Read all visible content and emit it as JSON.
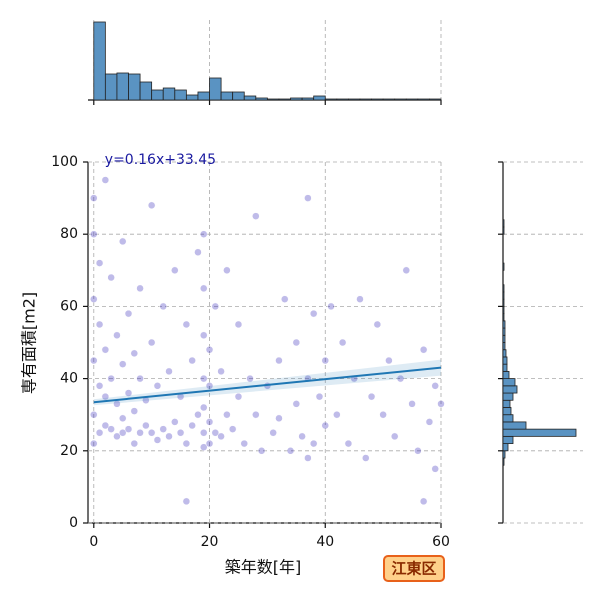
{
  "chart_data": [
    {
      "type": "scatter",
      "xlabel": "築年数[年]",
      "ylabel": "専有面積[m2]",
      "badge": "江東区",
      "equation": "y=0.16x+33.45",
      "slope": 0.16,
      "intercept": 33.45,
      "line_color": "#1f77b4",
      "color": "#2a1fb5",
      "grid": true,
      "xlim": [
        -1,
        60
      ],
      "ylim": [
        0,
        100
      ],
      "xticks": [
        0,
        20,
        40,
        60
      ],
      "yticks": [
        0,
        20,
        40,
        60,
        80,
        100
      ],
      "x": [
        0,
        0,
        0,
        0,
        0,
        0,
        1,
        1,
        1,
        1,
        2,
        2,
        2,
        2,
        3,
        3,
        3,
        4,
        4,
        4,
        5,
        5,
        5,
        5,
        6,
        6,
        6,
        7,
        7,
        7,
        8,
        8,
        8,
        9,
        9,
        10,
        10,
        10,
        11,
        11,
        12,
        12,
        13,
        13,
        14,
        14,
        15,
        15,
        16,
        16,
        16,
        17,
        17,
        18,
        18,
        19,
        19,
        19,
        19,
        19,
        19,
        19,
        20,
        20,
        20,
        20,
        21,
        21,
        22,
        22,
        23,
        23,
        24,
        25,
        25,
        26,
        27,
        28,
        28,
        29,
        30,
        31,
        32,
        32,
        33,
        34,
        35,
        35,
        36,
        37,
        37,
        37,
        38,
        38,
        39,
        40,
        40,
        41,
        42,
        43,
        44,
        45,
        46,
        47,
        48,
        49,
        50,
        51,
        52,
        53,
        54,
        55,
        56,
        57,
        58,
        59,
        60,
        59,
        57
      ],
      "values": [
        22,
        30,
        45,
        62,
        80,
        90,
        25,
        38,
        55,
        72,
        27,
        35,
        48,
        95,
        26,
        40,
        68,
        24,
        33,
        52,
        25,
        29,
        44,
        78,
        26,
        36,
        58,
        22,
        31,
        47,
        25,
        40,
        65,
        27,
        34,
        25,
        50,
        88,
        23,
        38,
        26,
        60,
        24,
        42,
        28,
        70,
        25,
        35,
        22,
        55,
        6,
        27,
        45,
        30,
        75,
        21,
        25,
        32,
        40,
        52,
        65,
        80,
        22,
        28,
        38,
        48,
        25,
        60,
        24,
        42,
        30,
        70,
        26,
        35,
        55,
        22,
        40,
        30,
        85,
        20,
        38,
        25,
        45,
        29,
        62,
        20,
        33,
        50,
        24,
        18,
        40,
        90,
        22,
        58,
        35,
        27,
        45,
        60,
        30,
        50,
        22,
        40,
        62,
        18,
        35,
        55,
        30,
        45,
        24,
        40,
        70,
        33,
        20,
        48,
        28,
        38,
        33,
        15,
        6
      ]
    },
    {
      "type": "histogram",
      "orientation": "vertical",
      "color": "#5a93c2",
      "grid": true,
      "bins": [
        0,
        2,
        4,
        6,
        8,
        10,
        12,
        14,
        16,
        18,
        20,
        22,
        24,
        26,
        28,
        30,
        32,
        34,
        36,
        38,
        40,
        42,
        44,
        46,
        48,
        50,
        52,
        54,
        56,
        58,
        60
      ],
      "values": [
        78,
        26,
        27,
        26,
        18,
        10,
        12,
        10,
        5,
        8,
        22,
        8,
        8,
        4,
        2,
        1,
        1,
        2,
        2,
        4,
        1,
        1,
        1,
        1,
        1,
        1,
        1,
        1,
        1,
        1
      ],
      "ylim": [
        0,
        80
      ],
      "xticks": [
        0,
        20,
        40,
        60
      ]
    },
    {
      "type": "histogram",
      "orientation": "horizontal",
      "color": "#5a93c2",
      "grid": true,
      "bins": [
        16,
        18,
        20,
        22,
        24,
        26,
        28,
        30,
        32,
        34,
        36,
        38,
        40,
        42,
        44,
        46,
        48,
        50,
        52,
        54,
        56,
        58,
        60,
        62,
        64,
        66,
        68,
        70,
        72,
        74,
        76,
        78,
        80,
        82,
        84
      ],
      "values": [
        1,
        2,
        5,
        10,
        73,
        23,
        10,
        8,
        7,
        10,
        14,
        12,
        6,
        4,
        4,
        3,
        2,
        2,
        2,
        2,
        1,
        1,
        1,
        1,
        1,
        0,
        0,
        1,
        0,
        0,
        0,
        0,
        1,
        1
      ],
      "xlim": [
        0,
        80
      ],
      "yticks": [
        0,
        20,
        40,
        60,
        80,
        100
      ],
      "ylim": [
        0,
        100
      ]
    }
  ]
}
